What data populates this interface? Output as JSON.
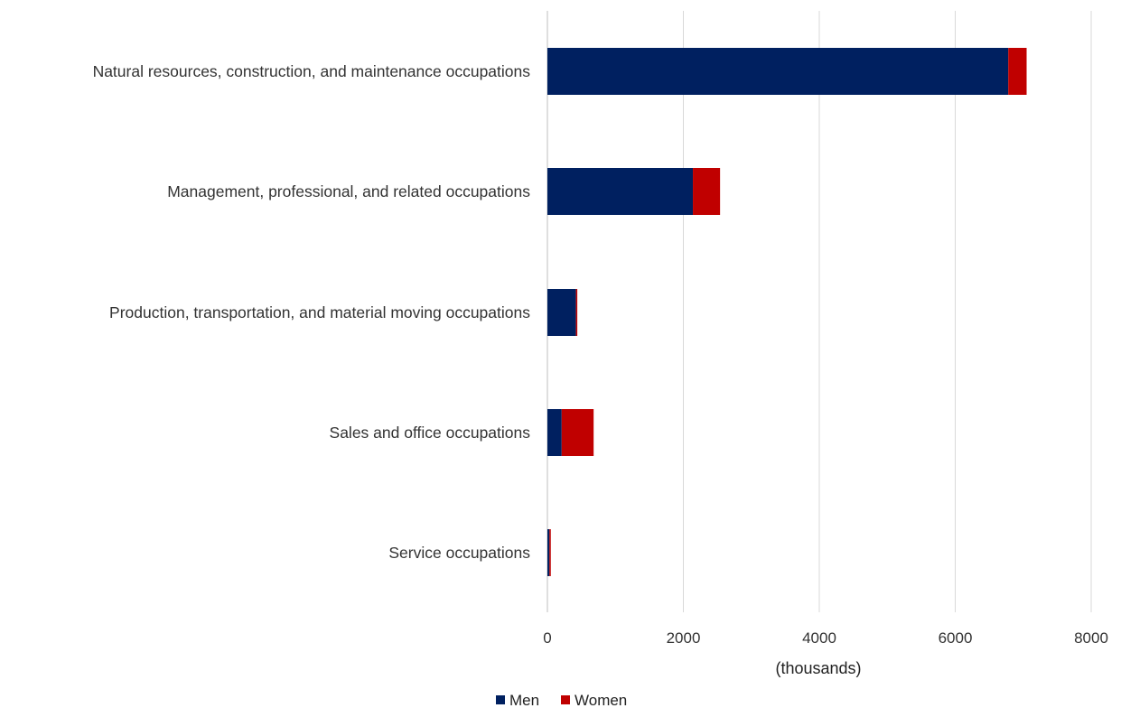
{
  "chart_data": {
    "type": "bar",
    "orientation": "horizontal",
    "stacked": true,
    "categories": [
      "Natural resources, construction, and maintenance occupations",
      "Management, professional, and related occupations",
      "Production, transportation, and material moving occupations",
      "Sales and office occupations",
      "Service occupations"
    ],
    "series": [
      {
        "name": "Men",
        "color": "#002060",
        "values": [
          6780,
          2140,
          420,
          210,
          30
        ]
      },
      {
        "name": "Women",
        "color": "#c00000",
        "values": [
          270,
          400,
          20,
          470,
          20
        ]
      }
    ],
    "xlabel": "(thousands)",
    "ylabel": "",
    "xlim": [
      0,
      8000
    ],
    "xticks": [
      0,
      2000,
      4000,
      6000,
      8000
    ],
    "grid": true,
    "legend_position": "bottom"
  }
}
